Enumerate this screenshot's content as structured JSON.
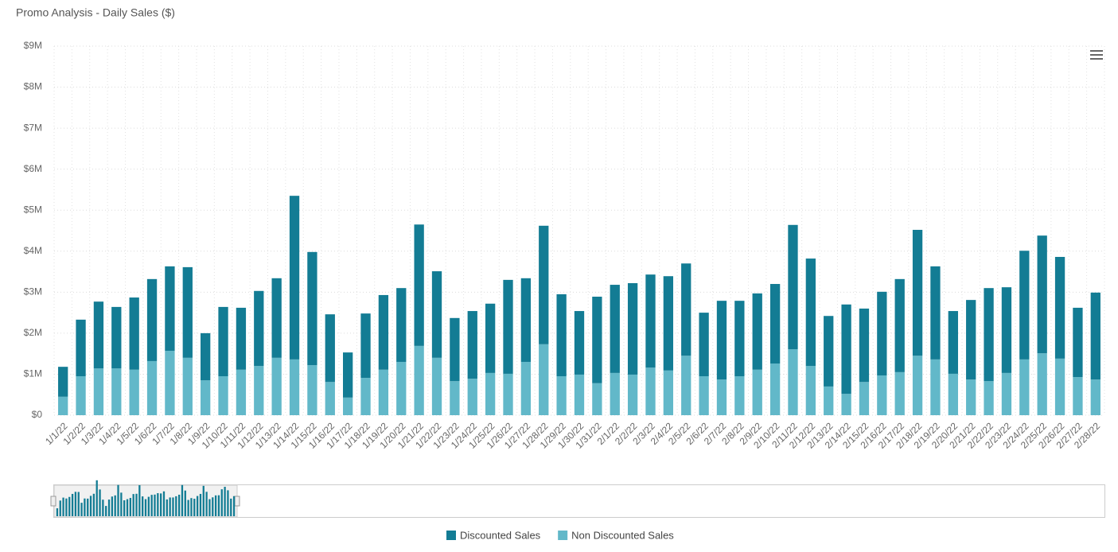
{
  "chart_data": {
    "type": "stacked-bar",
    "title": "Promo Analysis - Daily Sales ($)",
    "categories": [
      "1/1/22",
      "1/2/22",
      "1/3/22",
      "1/4/22",
      "1/5/22",
      "1/6/22",
      "1/7/22",
      "1/8/22",
      "1/9/22",
      "1/10/22",
      "1/11/22",
      "1/12/22",
      "1/13/22",
      "1/14/22",
      "1/15/22",
      "1/16/22",
      "1/17/22",
      "1/18/22",
      "1/19/22",
      "1/20/22",
      "1/21/22",
      "1/22/22",
      "1/23/22",
      "1/24/22",
      "1/25/22",
      "1/26/22",
      "1/27/22",
      "1/28/22",
      "1/29/22",
      "1/30/22",
      "1/31/22",
      "2/1/22",
      "2/2/22",
      "2/3/22",
      "2/4/22",
      "2/5/22",
      "2/6/22",
      "2/7/22",
      "2/8/22",
      "2/9/22",
      "2/10/22",
      "2/11/22",
      "2/12/22",
      "2/13/22",
      "2/14/22",
      "2/15/22",
      "2/16/22",
      "2/17/22",
      "2/18/22",
      "2/19/22",
      "2/20/22",
      "2/21/22",
      "2/22/22",
      "2/23/22",
      "2/24/22",
      "2/25/22",
      "2/26/22",
      "2/27/22",
      "2/28/22"
    ],
    "series": [
      {
        "name": "Non Discounted Sales",
        "color": "#62b8c9",
        "values": [
          450000,
          950000,
          1140000,
          1140000,
          1110000,
          1320000,
          1570000,
          1400000,
          850000,
          950000,
          1110000,
          1200000,
          1400000,
          1360000,
          1220000,
          810000,
          430000,
          910000,
          1110000,
          1300000,
          1690000,
          1400000,
          830000,
          890000,
          1030000,
          1010000,
          1300000,
          1730000,
          950000,
          990000,
          780000,
          1030000,
          990000,
          1160000,
          1090000,
          1450000,
          950000,
          870000,
          950000,
          1110000,
          1260000,
          1610000,
          1200000,
          700000,
          520000,
          810000,
          970000,
          1050000,
          1450000,
          1360000,
          1010000,
          870000,
          830000,
          1030000,
          1360000,
          1510000,
          1380000,
          930000,
          870000
        ]
      },
      {
        "name": "Discounted Sales",
        "color": "#137c94",
        "values": [
          730000,
          1380000,
          1630000,
          1500000,
          1760000,
          2000000,
          2060000,
          2210000,
          1150000,
          1690000,
          1510000,
          1830000,
          1940000,
          3990000,
          2760000,
          1650000,
          1100000,
          1570000,
          1820000,
          1800000,
          2960000,
          2110000,
          1540000,
          1650000,
          1690000,
          2290000,
          2040000,
          2890000,
          2000000,
          1550000,
          2110000,
          2150000,
          2230000,
          2270000,
          2300000,
          2250000,
          1550000,
          1920000,
          1840000,
          1860000,
          1940000,
          3030000,
          2620000,
          1720000,
          2180000,
          1790000,
          2040000,
          2270000,
          3070000,
          2270000,
          1530000,
          1940000,
          2270000,
          2090000,
          2650000,
          2870000,
          2480000,
          1690000,
          2120000
        ]
      }
    ],
    "ylim": [
      0,
      9000000
    ],
    "yticks": [
      {
        "value": 0,
        "label": "$0"
      },
      {
        "value": 1000000,
        "label": "$1M"
      },
      {
        "value": 2000000,
        "label": "$2M"
      },
      {
        "value": 3000000,
        "label": "$3M"
      },
      {
        "value": 4000000,
        "label": "$4M"
      },
      {
        "value": 5000000,
        "label": "$5M"
      },
      {
        "value": 6000000,
        "label": "$6M"
      },
      {
        "value": 7000000,
        "label": "$7M"
      },
      {
        "value": 8000000,
        "label": "$8M"
      },
      {
        "value": 9000000,
        "label": "$9M"
      }
    ],
    "legend_order": [
      1,
      0
    ],
    "grid": true
  }
}
